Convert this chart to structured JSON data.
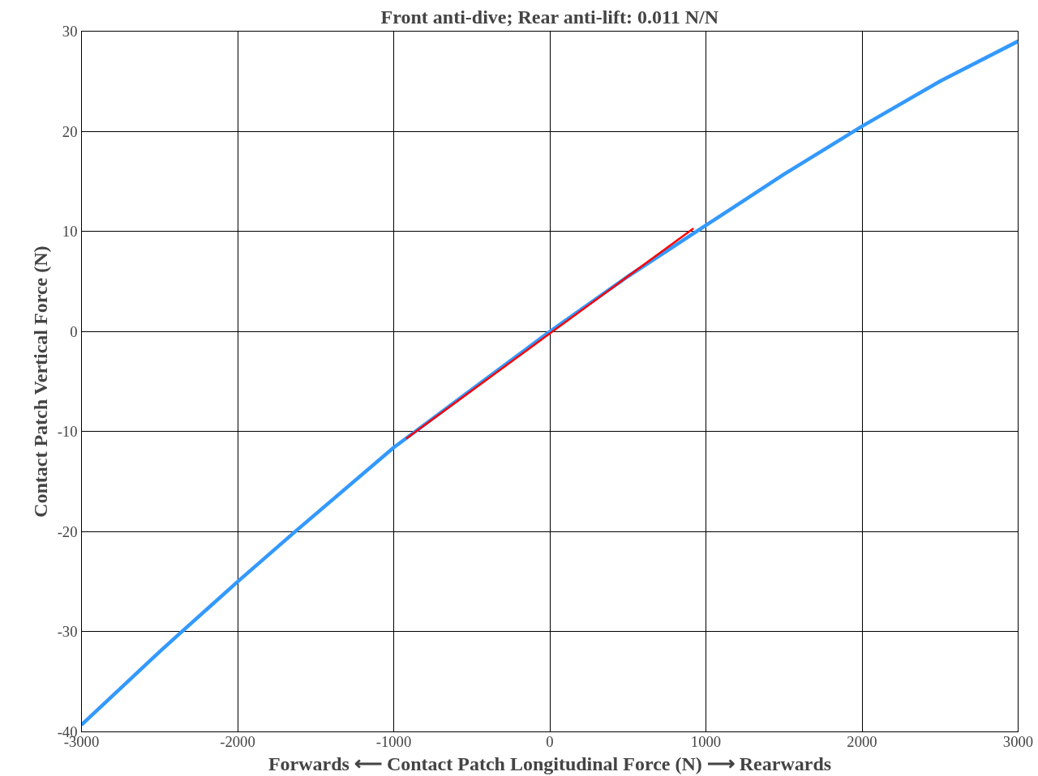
{
  "chart_data": {
    "type": "line",
    "title": "Front anti-dive; Rear anti-lift: 0.011 N/N",
    "xlabel": "Forwards ⟵ Contact Patch Longitudinal Force (N) ⟶ Rearwards",
    "ylabel": "Contact Patch Vertical Force (N)",
    "xlim": [
      -3000,
      3000
    ],
    "ylim": [
      -40,
      30
    ],
    "xticks": [
      -3000,
      -2000,
      -1000,
      0,
      1000,
      2000,
      3000
    ],
    "yticks": [
      -40,
      -30,
      -20,
      -10,
      0,
      10,
      20,
      30
    ],
    "grid": true,
    "line_style": "solid",
    "marker": "none",
    "series": [
      {
        "color": "#3399ff",
        "x": [
          -3000,
          -2500,
          -2358,
          -2000,
          -1632,
          -1000,
          -500,
          0,
          500,
          1000,
          1500,
          2000,
          2500,
          3000
        ],
        "values": [
          -39.3,
          -32.0,
          -30,
          -25.0,
          -20,
          -11.6,
          -5.8,
          0,
          5.5,
          10.6,
          15.7,
          20.5,
          25.0,
          29.0
        ]
      },
      {
        "color": "#ff0000",
        "x": [
          -920,
          920
        ],
        "values": [
          -10.7,
          10.3
        ]
      }
    ]
  }
}
